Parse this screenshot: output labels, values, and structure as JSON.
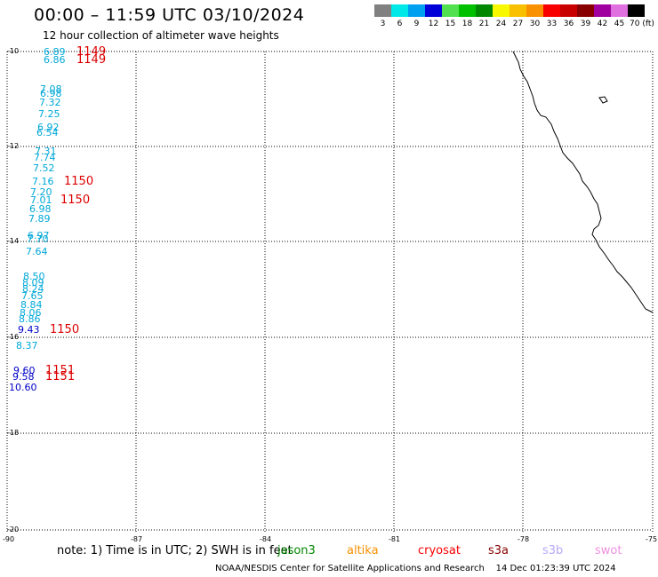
{
  "title": "00:00 – 11:59 UTC 03/10/2024",
  "subtitle": "12 hour collection of altimeter wave heights",
  "scale": {
    "labels": [
      "3",
      "6",
      "9",
      "12",
      "15",
      "18",
      "21",
      "24",
      "27",
      "30",
      "33",
      "36",
      "39",
      "42",
      "45",
      "70 (ft)"
    ],
    "colors": [
      "#808080",
      "#00e8e8",
      "#00a0f0",
      "#0000d8",
      "#50e050",
      "#00c000",
      "#008800",
      "#f8f800",
      "#f8c000",
      "#f89000",
      "#f80000",
      "#c80000",
      "#880000",
      "#a000a0",
      "#e070e0",
      "#000000"
    ]
  },
  "axes": {
    "lat_labels": [
      "-10",
      "-12",
      "-14",
      "-16",
      "-18",
      "-20"
    ],
    "lon_labels": [
      "-90",
      "-87",
      "-84",
      "-81",
      "-78",
      "-75"
    ]
  },
  "colors": {
    "lightblue": "#00a8d8",
    "darkblue": "#0000c8",
    "time_red": "#dd0000"
  },
  "measurements": [
    {
      "text": "6.89",
      "color": "lightblue"
    },
    {
      "text": "6.86",
      "color": "lightblue"
    },
    {
      "text": "7.08",
      "color": "lightblue"
    },
    {
      "text": "6.98",
      "color": "lightblue"
    },
    {
      "text": "7.32",
      "color": "lightblue"
    },
    {
      "text": "7.25",
      "color": "lightblue"
    },
    {
      "text": "6.92",
      "color": "lightblue"
    },
    {
      "text": "6.54",
      "color": "lightblue"
    },
    {
      "text": "7.31",
      "color": "lightblue"
    },
    {
      "text": "7.74",
      "color": "lightblue"
    },
    {
      "text": "7.52",
      "color": "lightblue"
    },
    {
      "text": "7.16",
      "color": "lightblue"
    },
    {
      "text": "7.20",
      "color": "lightblue"
    },
    {
      "text": "7.01",
      "color": "lightblue"
    },
    {
      "text": "6.98",
      "color": "lightblue"
    },
    {
      "text": "7.89",
      "color": "lightblue"
    },
    {
      "text": "6.97",
      "color": "lightblue"
    },
    {
      "text": "7.70",
      "color": "lightblue"
    },
    {
      "text": "7.64",
      "color": "lightblue"
    },
    {
      "text": "8.50",
      "color": "lightblue"
    },
    {
      "text": "8.09",
      "color": "lightblue"
    },
    {
      "text": "8.24",
      "color": "lightblue"
    },
    {
      "text": "7.65",
      "color": "lightblue"
    },
    {
      "text": "8.84",
      "color": "lightblue"
    },
    {
      "text": "8.06",
      "color": "lightblue"
    },
    {
      "text": "8.86",
      "color": "lightblue"
    },
    {
      "text": "9.43",
      "color": "darkblue"
    },
    {
      "text": "8.37",
      "color": "lightblue"
    },
    {
      "text": "9.60",
      "color": "darkblue"
    },
    {
      "text": "9.58",
      "color": "darkblue"
    },
    {
      "text": "10.60",
      "color": "darkblue"
    }
  ],
  "time_labels": [
    "1149",
    "1149",
    "1150",
    "1150",
    "1150",
    "1151",
    "1151"
  ],
  "footer": {
    "note": "note: 1) Time is in UTC; 2) SWH is in feet",
    "legend": [
      {
        "name": "jason3",
        "color": "#008800"
      },
      {
        "name": "altika",
        "color": "#f89000"
      },
      {
        "name": "cryosat",
        "color": "#f80000"
      },
      {
        "name": "s3a",
        "color": "#880000"
      },
      {
        "name": "s3b",
        "color": "#b8a8f8"
      },
      {
        "name": "swot",
        "color": "#f090e0"
      }
    ],
    "credit": "NOAA/NESDIS Center for Satellite Applications and Research",
    "timestamp": "14 Dec 01:23:39 UTC 2024"
  }
}
